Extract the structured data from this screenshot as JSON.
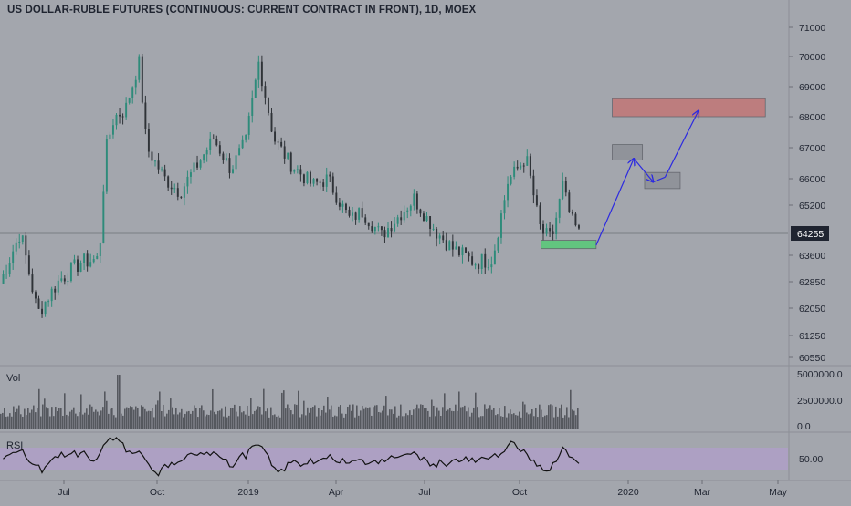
{
  "title": "US DOLLAR-RUBLE FUTURES (CONTINUOUS: CURRENT CONTRACT IN FRONT), 1D, MOEX",
  "colors": {
    "background": "#a3a6ad",
    "candle_up": "#2e8b7a",
    "candle_down": "#2f3338",
    "volume": "#55585e",
    "rsi_band": "#b69bd6",
    "last_price_label": "#1f2430",
    "green_zone": "#5cc97b",
    "gray_zone": "#8f9299",
    "red_zone": "#c0797a",
    "arrow": "#2c2ae0"
  },
  "price_axis": {
    "labels": [
      "71000",
      "70000",
      "69000",
      "68000",
      "67000",
      "66000",
      "65200",
      "64255",
      "63600",
      "62850",
      "62050",
      "61250",
      "60550"
    ],
    "last_price": "64255"
  },
  "volume_pane": {
    "label": "Vol",
    "axis_labels": [
      "5000000.0",
      "2500000.0",
      "0.0"
    ]
  },
  "rsi_pane": {
    "label": "RSI",
    "axis_labels": [
      "50.00"
    ]
  },
  "time_axis": [
    "Jul",
    "Oct",
    "2019",
    "Apr",
    "Jul",
    "Oct",
    "2020",
    "Mar",
    "May"
  ],
  "chart_data": {
    "type": "candlestick",
    "title": "US DOLLAR-RUBLE FUTURES (CONTINUOUS: CURRENT CONTRACT IN FRONT), 1D, MOEX",
    "x_range": [
      "2018-05",
      "2020-05"
    ],
    "ylim": [
      60200,
      71300
    ],
    "price_path": [
      [
        "2018-05-01",
        62800
      ],
      [
        "2018-05-20",
        64300
      ],
      [
        "2018-06-05",
        61900
      ],
      [
        "2018-06-25",
        62900
      ],
      [
        "2018-07-15",
        63400
      ],
      [
        "2018-08-01",
        63500
      ],
      [
        "2018-08-07",
        66900
      ],
      [
        "2018-08-15",
        68000
      ],
      [
        "2018-08-25",
        68200
      ],
      [
        "2018-09-07",
        69800
      ],
      [
        "2018-09-14",
        67000
      ],
      [
        "2018-10-01",
        66000
      ],
      [
        "2018-10-15",
        65600
      ],
      [
        "2018-11-01",
        66500
      ],
      [
        "2018-11-15",
        67300
      ],
      [
        "2018-12-01",
        66300
      ],
      [
        "2018-12-15",
        67200
      ],
      [
        "2018-12-27",
        69800
      ],
      [
        "2019-01-10",
        67300
      ],
      [
        "2019-01-25",
        66500
      ],
      [
        "2019-02-15",
        65800
      ],
      [
        "2019-03-01",
        66000
      ],
      [
        "2019-03-22",
        64700
      ],
      [
        "2019-04-01",
        65000
      ],
      [
        "2019-04-20",
        64200
      ],
      [
        "2019-05-20",
        65400
      ],
      [
        "2019-06-10",
        64300
      ],
      [
        "2019-06-25",
        63800
      ],
      [
        "2019-07-15",
        63400
      ],
      [
        "2019-08-01",
        63500
      ],
      [
        "2019-08-15",
        65900
      ],
      [
        "2019-09-01",
        66700
      ],
      [
        "2019-09-15",
        64300
      ],
      [
        "2019-09-25",
        64100
      ],
      [
        "2019-10-05",
        65800
      ],
      [
        "2019-10-12",
        64800
      ],
      [
        "2019-10-20",
        64255
      ]
    ],
    "last_price": 64255,
    "zones": [
      {
        "color": "green",
        "from": "2019-09-15",
        "to": "2019-11-05",
        "y_low": 63800,
        "y_high": 64050
      },
      {
        "color": "gray",
        "from": "2019-11-20",
        "to": "2019-12-18",
        "y_low": 66600,
        "y_high": 67100
      },
      {
        "color": "gray",
        "from": "2019-12-20",
        "to": "2020-01-22",
        "y_low": 65700,
        "y_high": 66200
      },
      {
        "color": "red",
        "from": "2019-11-20",
        "to": "2020-04-10",
        "y_low": 68000,
        "y_high": 68600
      }
    ],
    "projection_path": [
      [
        "2019-11-05",
        63900
      ],
      [
        "2019-12-10",
        66650
      ],
      [
        "2019-12-28",
        65900
      ],
      [
        "2020-01-08",
        66050
      ],
      [
        "2020-02-08",
        68200
      ]
    ],
    "volume_axis": [
      "0.0",
      "2500000.0",
      "5000000.0"
    ],
    "rsi_axis": [
      "50.00"
    ]
  }
}
